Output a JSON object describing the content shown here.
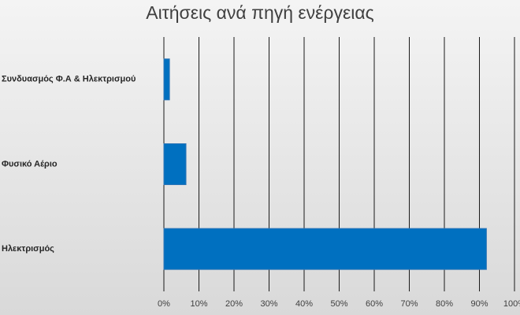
{
  "chart_data": {
    "type": "hbar",
    "title": "Αιτήσεις ανά πηγή ενέργειας",
    "categories": [
      "Συνδυασμός Φ.Α & Ηλεκτρισμού",
      "Φυσικό Αέριο",
      "Ηλεκτρισμός"
    ],
    "values": [
      1.6,
      6.3,
      92
    ],
    "color": "#0070c0",
    "xlim": [
      0,
      100
    ],
    "xticks": [
      {
        "value": 0,
        "label": "0%"
      },
      {
        "value": 10,
        "label": "10%"
      },
      {
        "value": 20,
        "label": "20%"
      },
      {
        "value": 30,
        "label": "30%"
      },
      {
        "value": 40,
        "label": "40%"
      },
      {
        "value": 50,
        "label": "50%"
      },
      {
        "value": 60,
        "label": "60%"
      },
      {
        "value": 70,
        "label": "70%"
      },
      {
        "value": 80,
        "label": "80%"
      },
      {
        "value": 90,
        "label": "90%"
      },
      {
        "value": 100,
        "label": "100%"
      }
    ],
    "grid": true
  }
}
